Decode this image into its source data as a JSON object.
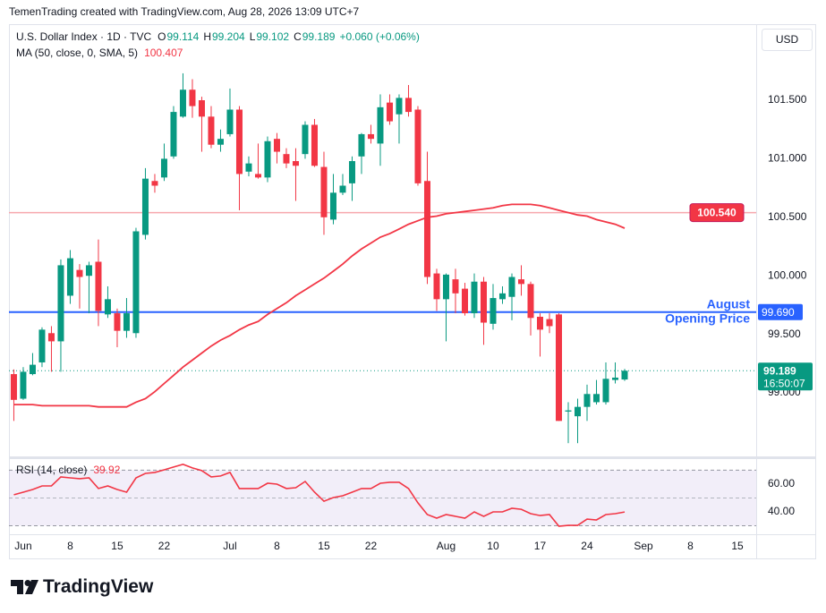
{
  "header": "TemenTrading created with TradingView.com, Aug 28, 2026 13:09 UTC+7",
  "logo_text": "TradingView",
  "currency": "USD",
  "chart_data": {
    "type": "candlestick",
    "title": "U.S. Dollar Index · 1D · TVC",
    "ohlc_labels": [
      "O",
      "H",
      "L",
      "C"
    ],
    "change": "+0.060 (+0.06%)",
    "countdown": "16:50:07",
    "xlim": [
      -0.52,
      79
    ],
    "xticks": [
      {
        "value": 1,
        "label": "Jun"
      },
      {
        "value": 6,
        "label": "8"
      },
      {
        "value": 11,
        "label": "15"
      },
      {
        "value": 16,
        "label": "22"
      },
      {
        "value": 23,
        "label": "Jul"
      },
      {
        "value": 28,
        "label": "8"
      },
      {
        "value": 33,
        "label": "15"
      },
      {
        "value": 38,
        "label": "22"
      },
      {
        "value": 46,
        "label": "Aug"
      },
      {
        "value": 51,
        "label": "10"
      },
      {
        "value": 56,
        "label": "17"
      },
      {
        "value": 61,
        "label": "24"
      },
      {
        "value": 67,
        "label": "Sep"
      },
      {
        "value": 72,
        "label": "8"
      },
      {
        "value": 77,
        "label": "15"
      }
    ],
    "ylim": [
      98.457,
      102.15
    ],
    "yticks": [
      {
        "value": 99,
        "label": "99.000"
      },
      {
        "value": 99.5,
        "label": "99.500"
      },
      {
        "value": 100,
        "label": "100.000"
      },
      {
        "value": 100.5,
        "label": "100.500"
      },
      {
        "value": 101,
        "label": "101.000"
      },
      {
        "value": 101.5,
        "label": "101.500"
      }
    ],
    "up_color": "#089981",
    "down_color": "#f23645",
    "candles": {
      "open": [
        99.16,
        98.95,
        99.16,
        99.26,
        99.51,
        99.44,
        99.83,
        100.05,
        100.0,
        100.12,
        99.67,
        99.68,
        99.53,
        99.51,
        100.35,
        100.81,
        100.84,
        101.02,
        101.36,
        101.59,
        101.5,
        101.36,
        101.12,
        101.21,
        101.42,
        100.89,
        100.87,
        100.84,
        101.17,
        101.04,
        100.98,
        101.04,
        101.29,
        100.93,
        100.48,
        100.71,
        100.79,
        101.02,
        101.21,
        101.13,
        101.48,
        101.38,
        101.52,
        101.42,
        100.81,
        100.02,
        99.8,
        99.97,
        99.89,
        99.68,
        99.95,
        99.59,
        99.8,
        99.82,
        99.97,
        99.93,
        99.65,
        99.63,
        99.67,
        98.84,
        98.8,
        98.88,
        98.92,
        98.92,
        99.11,
        99.114
      ],
      "high": [
        99.2,
        99.22,
        99.34,
        99.56,
        99.57,
        100.14,
        100.22,
        100.1,
        100.12,
        100.31,
        99.91,
        99.72,
        99.81,
        100.41,
        100.92,
        100.87,
        101.13,
        101.45,
        101.73,
        101.68,
        101.53,
        101.45,
        101.25,
        101.6,
        101.45,
        101.02,
        101.13,
        101.19,
        101.22,
        101.09,
        101.09,
        101.32,
        101.34,
        101.06,
        100.87,
        100.87,
        101.02,
        101.22,
        101.29,
        101.55,
        101.55,
        101.55,
        101.63,
        101.45,
        101.06,
        100.06,
        100.02,
        100.06,
        99.94,
        100.02,
        99.99,
        99.93,
        99.91,
        100.02,
        100.09,
        99.95,
        99.68,
        99.68,
        99.68,
        98.92,
        98.95,
        99.07,
        99.11,
        99.26,
        99.26,
        99.204
      ],
      "low": [
        98.76,
        98.94,
        99.15,
        99.22,
        99.18,
        99.18,
        99.76,
        99.72,
        99.68,
        99.57,
        99.64,
        99.39,
        99.47,
        99.47,
        100.31,
        100.71,
        100.81,
        101.0,
        101.35,
        101.35,
        101.06,
        101.09,
        101.06,
        101.19,
        100.56,
        100.85,
        100.83,
        100.8,
        100.96,
        100.92,
        100.64,
        101.0,
        100.93,
        100.35,
        100.44,
        100.69,
        100.64,
        100.87,
        101.13,
        100.94,
        101.29,
        101.13,
        101.36,
        100.77,
        99.93,
        99.7,
        99.44,
        99.68,
        99.66,
        99.64,
        99.41,
        99.54,
        99.76,
        99.62,
        99.83,
        99.49,
        99.31,
        99.51,
        98.76,
        98.57,
        98.57,
        98.76,
        98.9,
        98.9,
        99.08,
        99.102
      ],
      "close": [
        98.94,
        99.18,
        99.24,
        99.54,
        99.44,
        100.09,
        100.15,
        99.99,
        100.09,
        99.7,
        99.8,
        99.53,
        99.68,
        100.38,
        100.83,
        100.77,
        101.0,
        101.4,
        101.59,
        101.45,
        101.36,
        101.12,
        101.17,
        101.42,
        100.87,
        100.96,
        100.84,
        101.15,
        101.06,
        100.96,
        100.94,
        101.29,
        100.94,
        100.5,
        100.71,
        100.77,
        100.98,
        101.21,
        101.17,
        101.44,
        101.32,
        101.52,
        101.4,
        100.79,
        99.99,
        99.8,
        100.01,
        99.85,
        99.68,
        99.95,
        99.6,
        99.81,
        99.85,
        99.99,
        99.93,
        99.64,
        99.54,
        99.57,
        98.76,
        98.85,
        98.88,
        98.99,
        98.99,
        99.12,
        99.13,
        99.189
      ]
    },
    "series": [
      {
        "name": "MA (50, close, 0, SMA, 5)",
        "color": "#f23645",
        "values": [
          98.9,
          98.9,
          98.9,
          98.89,
          98.89,
          98.89,
          98.89,
          98.89,
          98.89,
          98.88,
          98.88,
          98.88,
          98.88,
          98.92,
          98.95,
          99.01,
          99.08,
          99.15,
          99.22,
          99.28,
          99.34,
          99.4,
          99.45,
          99.49,
          99.54,
          99.58,
          99.61,
          99.67,
          99.72,
          99.77,
          99.83,
          99.88,
          99.93,
          99.98,
          100.04,
          100.1,
          100.17,
          100.23,
          100.28,
          100.33,
          100.36,
          100.4,
          100.44,
          100.47,
          100.5,
          100.51,
          100.53,
          100.54,
          100.55,
          100.56,
          100.57,
          100.58,
          100.6,
          100.61,
          100.61,
          100.61,
          100.6,
          100.58,
          100.56,
          100.54,
          100.52,
          100.51,
          100.48,
          100.46,
          100.44,
          100.407
        ]
      }
    ],
    "lines": [
      {
        "value": 100.54,
        "label": "100.540",
        "color": "#f7a8ad",
        "tag_color": "#f23645"
      },
      {
        "value": 99.69,
        "label": "99.690",
        "name_lines": [
          "August",
          "Opening Price"
        ],
        "color": "#2962ff",
        "tag_color": "#2962ff"
      }
    ],
    "rsi": {
      "name": "RSI (14, close)",
      "color": "#f23645",
      "values": [
        52.3,
        54.2,
        56.1,
        58.7,
        58.7,
        65.2,
        64.5,
        63.9,
        64.5,
        56.8,
        58.7,
        56.1,
        54.2,
        64.5,
        67.7,
        68.4,
        70.3,
        72.3,
        74.2,
        71.6,
        69.7,
        65.2,
        65.8,
        68.4,
        56.8,
        56.8,
        56.8,
        60.6,
        60.0,
        56.8,
        57.4,
        61.9,
        54.2,
        47.7,
        50.3,
        51.6,
        54.2,
        56.8,
        56.8,
        60.6,
        61.3,
        61.3,
        56.8,
        46.5,
        38.1,
        35.5,
        38.1,
        36.8,
        35.5,
        40.0,
        36.8,
        40.0,
        40.0,
        42.6,
        41.9,
        38.7,
        37.4,
        38.1,
        29.7,
        30.3,
        30.3,
        34.8,
        34.2,
        38.1,
        38.7,
        39.92
      ],
      "ylim": [
        25.2,
        78
      ],
      "yticks": [
        {
          "value": 40,
          "label": "40.00"
        },
        {
          "value": 60,
          "label": "60.00"
        }
      ],
      "bands": [
        30,
        70
      ],
      "mid": 50,
      "band_color": "#7e57c2"
    }
  }
}
